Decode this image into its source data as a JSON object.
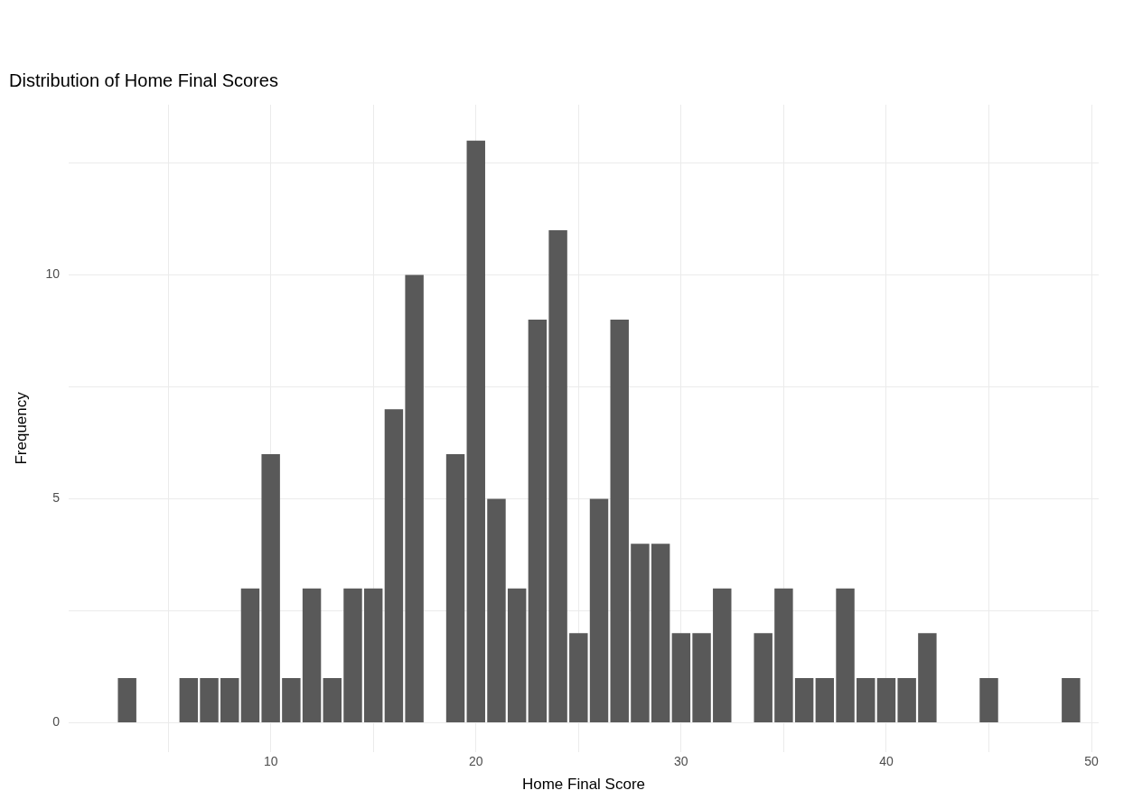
{
  "chart_data": {
    "type": "histogram",
    "title": "Distribution of Home Final Scores",
    "xlabel": "Home Final Score",
    "ylabel": "Frequency",
    "bins": [
      2.5,
      3.5,
      4.5,
      5.5,
      6.5,
      7.5,
      8.5,
      9.5,
      10.5,
      11.5,
      12.5,
      13.5,
      14.5,
      15.5,
      16.5,
      17.5,
      18.5,
      19.5,
      20.5,
      21.5,
      22.5,
      23.5,
      24.5,
      25.5,
      26.5,
      27.5,
      28.5,
      29.5,
      30.5,
      31.5,
      32.5,
      33.5,
      34.5,
      35.5,
      36.5,
      37.5,
      38.5,
      39.5,
      40.5,
      41.5,
      42.5,
      43.5,
      44.5,
      45.5,
      46.5,
      47.5,
      48.5,
      49.5
    ],
    "values": [
      1,
      0,
      0,
      1,
      1,
      1,
      3,
      6,
      1,
      3,
      1,
      3,
      3,
      7,
      10,
      0,
      6,
      13,
      5,
      3,
      9,
      11,
      2,
      5,
      9,
      4,
      4,
      2,
      2,
      3,
      0,
      2,
      3,
      1,
      1,
      3,
      1,
      1,
      1,
      2,
      0,
      0,
      1,
      0,
      0,
      0,
      1
    ],
    "color": "#595959",
    "xlim": [
      0.15,
      50.35
    ],
    "ylim": [
      -0.65,
      13.8
    ],
    "xticks": [
      {
        "value": 5,
        "label": null
      },
      10,
      {
        "value": 15,
        "label": null
      },
      20,
      {
        "value": 25,
        "label": null
      },
      30,
      {
        "value": 35,
        "label": null
      },
      40,
      {
        "value": 45,
        "label": null
      },
      50
    ],
    "yticks": [
      0,
      {
        "value": 2.5,
        "label": null
      },
      5,
      {
        "value": 7.5,
        "label": null
      },
      10,
      {
        "value": 12.5,
        "label": null
      }
    ],
    "grid": true,
    "legend": false
  }
}
